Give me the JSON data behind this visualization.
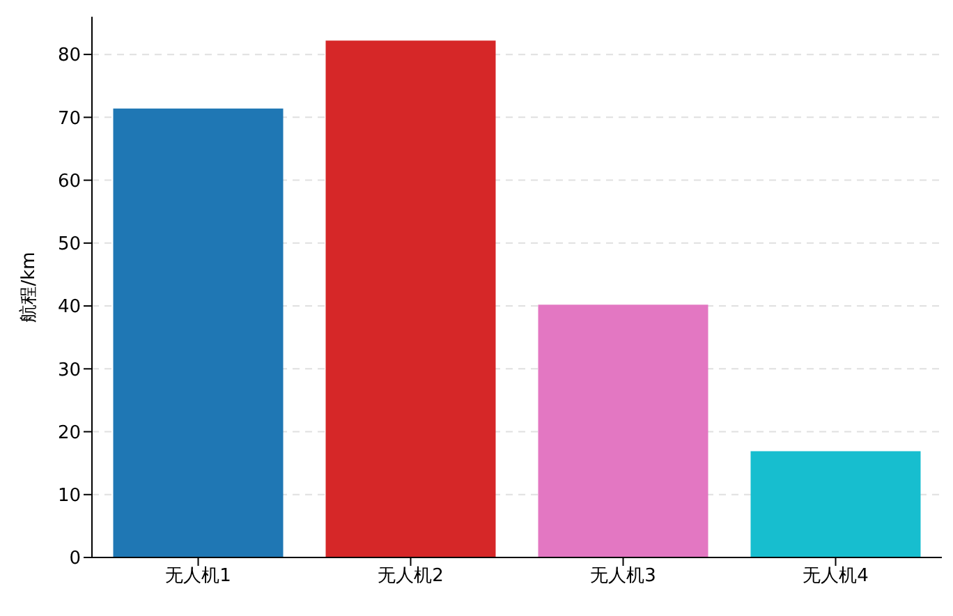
{
  "chart_data": {
    "type": "bar",
    "ylabel": "航程/km",
    "categories": [
      "无人机1",
      "无人机2",
      "无人机3",
      "无人机4"
    ],
    "values": [
      71.4,
      82.2,
      40.2,
      16.9
    ],
    "colors": [
      "#1f77b4",
      "#d62728",
      "#e377c2",
      "#17becf"
    ],
    "ylim": [
      0,
      86
    ],
    "yticks": [
      0,
      10,
      20,
      30,
      40,
      50,
      60,
      70,
      80
    ],
    "grid": "y"
  }
}
